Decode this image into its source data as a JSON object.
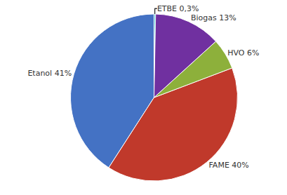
{
  "chart_data": {
    "type": "pie",
    "categories": [
      "ETBE 0,3%",
      "Etanol 41%",
      "FAME 40%",
      "HVO 6%",
      "Biogas 13%"
    ],
    "values": [
      0.3,
      41,
      40,
      6,
      13
    ],
    "colors": [
      "#4dc8d4",
      "#4472c4",
      "#c0392b",
      "#8db03b",
      "#7030a0"
    ],
    "data_labels": true
  }
}
